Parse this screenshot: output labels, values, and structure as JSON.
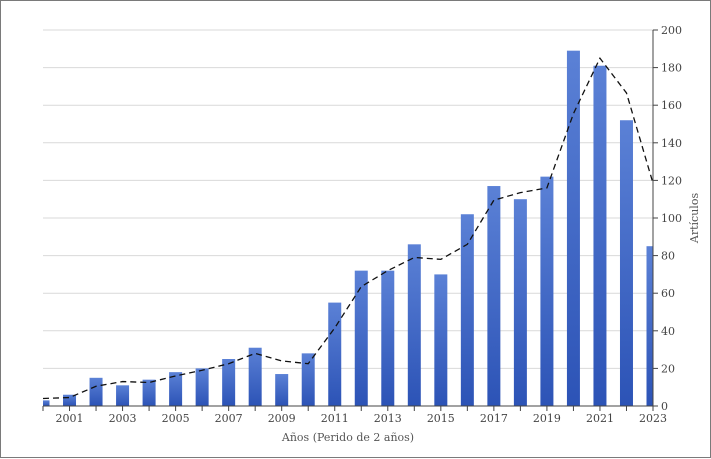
{
  "chart_data": {
    "type": "bar",
    "categories": [
      "2000",
      "2001",
      "2002",
      "2003",
      "2004",
      "2005",
      "2006",
      "2007",
      "2008",
      "2009",
      "2010",
      "2011",
      "2012",
      "2013",
      "2014",
      "2015",
      "2016",
      "2017",
      "2018",
      "2019",
      "2020",
      "2021",
      "2022",
      "2023"
    ],
    "values": [
      3,
      6,
      15,
      11,
      14,
      18,
      20,
      25,
      31,
      17,
      28,
      55,
      72,
      72,
      86,
      70,
      102,
      117,
      110,
      122,
      189,
      181,
      152,
      85
    ],
    "trendline": {
      "type": "moving-average",
      "period": 2,
      "values": [
        null,
        4.5,
        10.5,
        13,
        12.5,
        16,
        19,
        22.5,
        28,
        24,
        22.5,
        41.5,
        63.5,
        72,
        79,
        78,
        86,
        109.5,
        113.5,
        116,
        155.5,
        185,
        166.5,
        118.5
      ]
    },
    "x_tick_labels": [
      "2001",
      "2003",
      "2005",
      "2007",
      "2009",
      "2011",
      "2013",
      "2015",
      "2017",
      "2019",
      "2021",
      "2023"
    ],
    "xlabel": "Años (Perido de 2 años)",
    "ylabel": "Artículos",
    "ylim": [
      0,
      200
    ],
    "y_ticks": [
      0,
      20,
      40,
      60,
      80,
      100,
      120,
      140,
      160,
      180,
      200
    ],
    "y_axis_position": "right",
    "grid": true,
    "legend": "none",
    "colors": {
      "bar_top": "#5b81d6",
      "bar_bottom": "#2c53b6",
      "trendline": "#111111",
      "grid": "#d9d9d9",
      "axis": "#444444"
    }
  }
}
